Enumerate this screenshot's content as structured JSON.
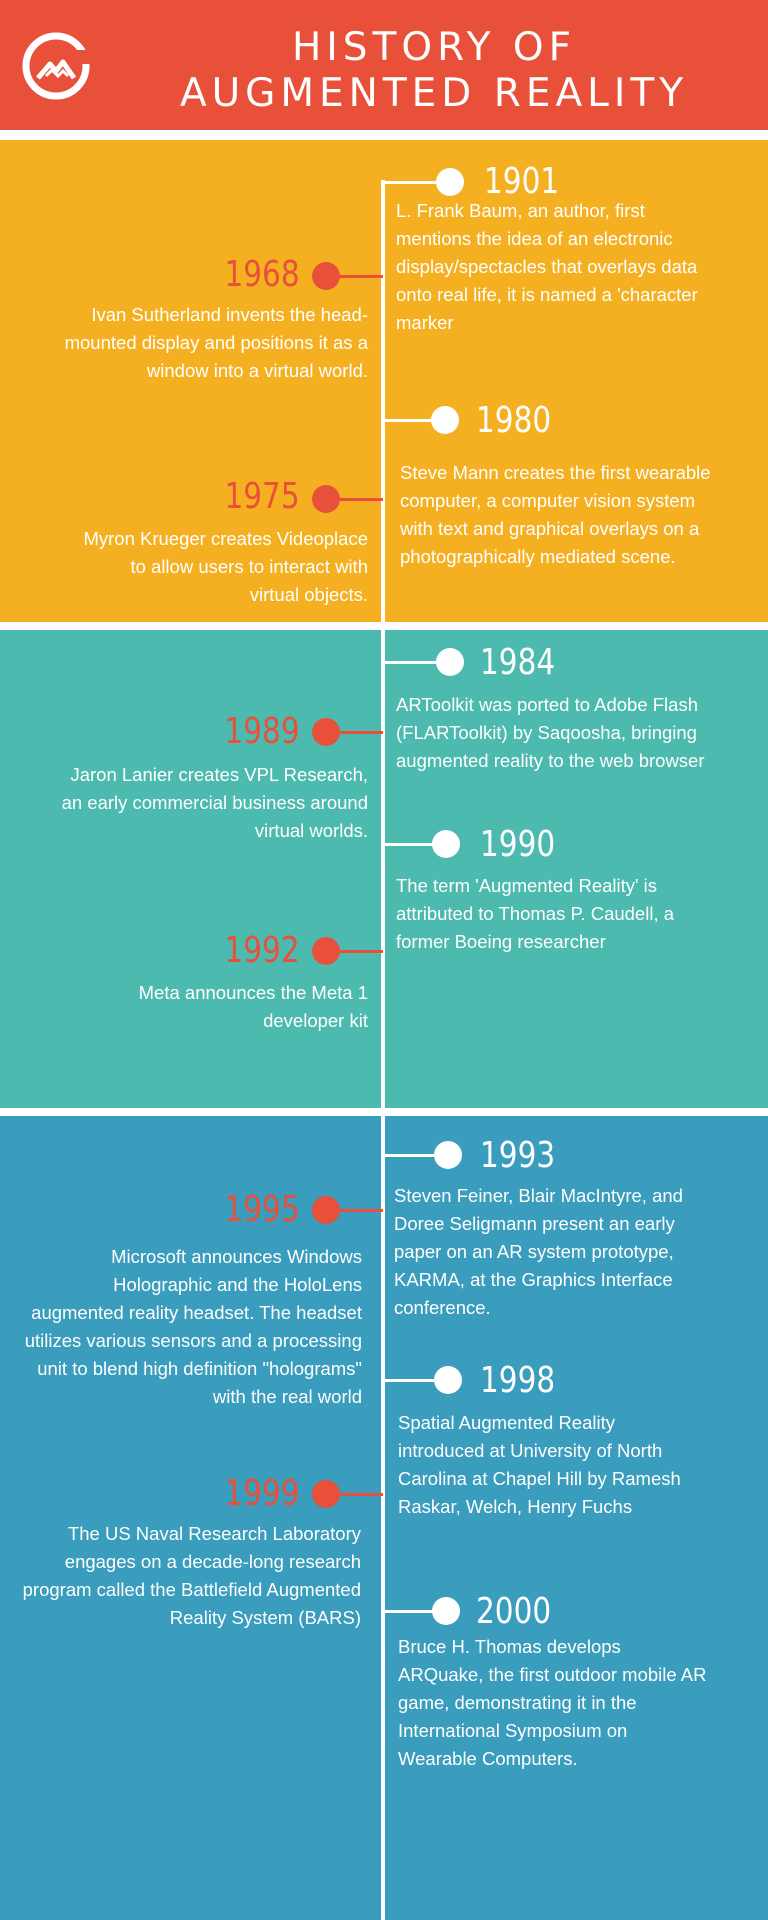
{
  "header": {
    "title_line1": "HISTORY OF",
    "title_line2": "AUGMENTED REALITY",
    "logo_icon": "mountain-logo-icon",
    "bg_color": "#e8503a"
  },
  "colors": {
    "section1": "#f5b022",
    "section2": "#4dbab0",
    "section3": "#3a9dbd",
    "accent": "#e8503a",
    "line": "#ffffff"
  },
  "events": [
    {
      "year": "1901",
      "text": "L. Frank Baum, an author, first mentions the idea of an electronic display/spectacles that overlays data onto real life, it is named a 'character marker"
    },
    {
      "year": "1968",
      "text": "Ivan Sutherland invents the head-mounted display and positions it as a window into a virtual world."
    },
    {
      "year": "1980",
      "text": "Steve Mann creates the first wearable computer, a computer vision system with text and graphical overlays on a photographically mediated scene."
    },
    {
      "year": "1975",
      "text": "Myron Krueger creates Videoplace to allow users to interact with virtual objects."
    },
    {
      "year": "1984",
      "text": "ARToolkit was ported to Adobe Flash (FLARToolkit) by Saqoosha, bringing augmented reality to the web browser"
    },
    {
      "year": "1989",
      "text": "Jaron Lanier creates VPL Research, an early commercial business around virtual worlds."
    },
    {
      "year": "1990",
      "text": "The term 'Augmented Reality' is attributed to Thomas P. Caudell, a former Boeing researcher"
    },
    {
      "year": "1992",
      "text": "Meta announces the Meta 1 developer kit"
    },
    {
      "year": "1993",
      "text": "Steven Feiner, Blair MacIntyre, and Doree Seligmann present an early paper on an AR system prototype, KARMA, at the Graphics Interface conference."
    },
    {
      "year": "1995",
      "text": "Microsoft announces Windows Holographic and the HoloLens augmented reality headset. The headset utilizes various sensors and a processing unit to blend high definition \"holograms\" with the real world"
    },
    {
      "year": "1998",
      "text": "Spatial Augmented Reality introduced at University of North Carolina at Chapel Hill by Ramesh Raskar, Welch, Henry Fuchs"
    },
    {
      "year": "1999",
      "text": "The US Naval Research Laboratory engages on a decade-long research program called the Battlefield Augmented Reality System (BARS)"
    },
    {
      "year": "2000",
      "text": "Bruce H. Thomas develops ARQuake, the first outdoor mobile AR game, demonstrating it in the International Symposium on Wearable Computers."
    }
  ]
}
